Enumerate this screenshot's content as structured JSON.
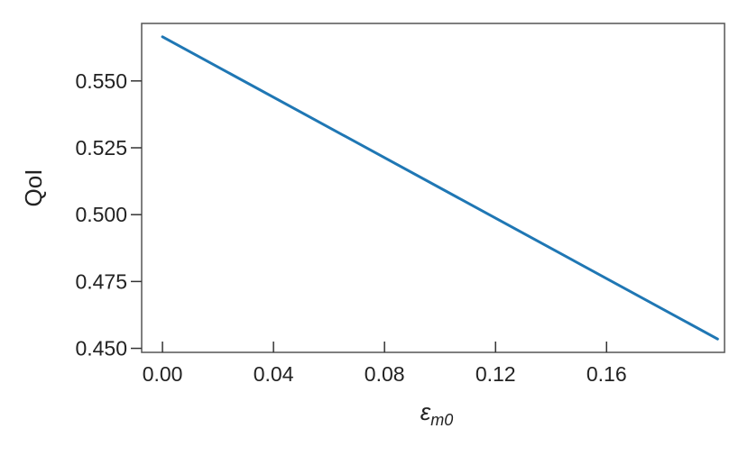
{
  "chart_data": {
    "type": "line",
    "xlabel": "ε_m0",
    "xlabel_main": "ε",
    "xlabel_sub": "m0",
    "ylabel": "QoI",
    "xlim": [
      -0.0075,
      0.2025
    ],
    "ylim": [
      0.4485,
      0.5715
    ],
    "xticks": [
      0.0,
      0.04,
      0.08,
      0.12,
      0.16
    ],
    "xtick_labels": [
      "0.00",
      "0.04",
      "0.08",
      "0.12",
      "0.16"
    ],
    "yticks": [
      0.45,
      0.475,
      0.5,
      0.525,
      0.55
    ],
    "ytick_labels": [
      "0.450",
      "0.475",
      "0.500",
      "0.525",
      "0.550"
    ],
    "grid": false,
    "series": [
      {
        "color": "#1f77b4",
        "x": [
          0.0,
          0.2
        ],
        "y": [
          0.5665,
          0.4535
        ]
      }
    ]
  }
}
